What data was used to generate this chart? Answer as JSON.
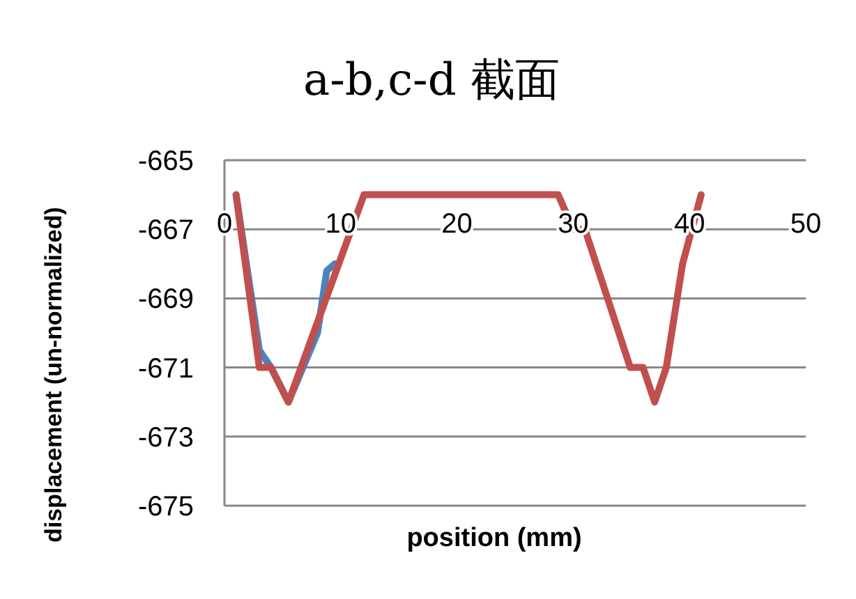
{
  "chart_data": {
    "type": "line",
    "title": "a-b,c-d 截面",
    "xlabel": "position (mm)",
    "ylabel": "displacement (un-normalized)",
    "xlim": [
      0,
      50
    ],
    "xticks": [
      0,
      10,
      20,
      30,
      40,
      50
    ],
    "ylim": [
      -675,
      -665
    ],
    "yticks": [
      -675,
      -673,
      -671,
      -669,
      -667,
      -665
    ],
    "grid": "y",
    "marker": "none",
    "line_style": "solid",
    "series": [
      {
        "color": "#4f81bd",
        "x": [
          1,
          3,
          4,
          5.5,
          8,
          8.8,
          9.5
        ],
        "values": [
          -666,
          -670.5,
          -671,
          -672,
          -670,
          -668.2,
          -668
        ]
      },
      {
        "color": "#c0504d",
        "x": [
          1,
          3,
          4,
          5.5,
          12,
          13,
          28.7,
          30,
          31,
          34.9,
          36,
          37,
          38,
          39.4,
          41
        ],
        "values": [
          -666,
          -671,
          -671,
          -672,
          -666,
          -666,
          -666,
          -667,
          -667,
          -671,
          -671,
          -672,
          -671,
          -668,
          -666
        ]
      }
    ]
  }
}
